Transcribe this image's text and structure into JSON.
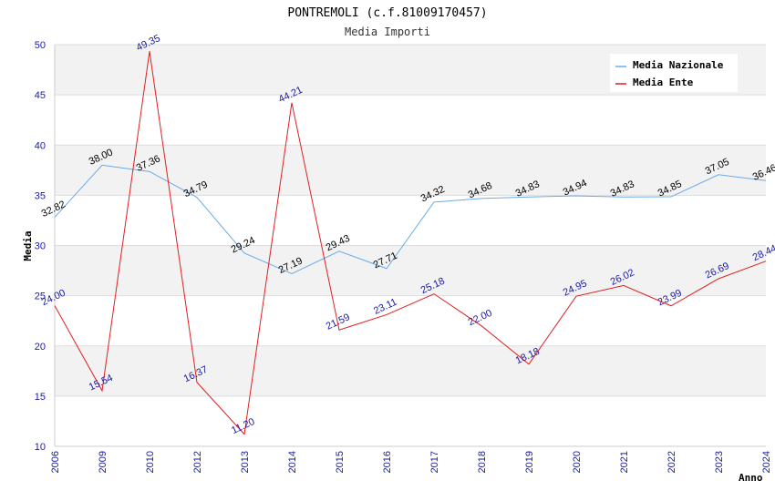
{
  "chart_data": {
    "type": "line",
    "title": "PONTREMOLI (c.f.81009170457)",
    "subtitle": "Media Importi",
    "xlabel": "Anno",
    "ylabel": "Media",
    "ylim": [
      10,
      50
    ],
    "yticks": [
      "10",
      "15",
      "20",
      "25",
      "30",
      "35",
      "40",
      "45",
      "50"
    ],
    "categories": [
      "2006",
      "2009",
      "2010",
      "2012",
      "2013",
      "2014",
      "2015",
      "2016",
      "2017",
      "2018",
      "2019",
      "2020",
      "2021",
      "2022",
      "2023",
      "2024"
    ],
    "series": [
      {
        "name": "Media Nazionale",
        "color": "#6aaae8",
        "values": [
          32.82,
          38.0,
          37.36,
          34.79,
          29.24,
          27.19,
          29.43,
          27.71,
          34.32,
          34.68,
          34.83,
          34.94,
          34.83,
          34.85,
          37.05,
          36.46
        ],
        "labels": [
          "32.82",
          "38.00",
          "37.36",
          "34.79",
          "29.24",
          "27.19",
          "29.43",
          "27.71",
          "34.32",
          "34.68",
          "34.83",
          "34.94",
          "34.83",
          "34.85",
          "37.05",
          "36.46"
        ]
      },
      {
        "name": "Media Ente",
        "color": "#e02020",
        "values": [
          24.0,
          15.54,
          49.35,
          16.37,
          11.2,
          44.21,
          21.59,
          23.11,
          25.18,
          22.0,
          18.18,
          24.95,
          26.02,
          23.99,
          26.69,
          28.44
        ],
        "labels": [
          "24.00",
          "15.54",
          "49.35",
          "16.37",
          "11.20",
          "44.21",
          "21.59",
          "23.11",
          "25.18",
          "22.00",
          "18.18",
          "24.95",
          "26.02",
          "23.99",
          "26.69",
          "28.44"
        ]
      }
    ],
    "legend_position": "top-right",
    "grid": true
  }
}
